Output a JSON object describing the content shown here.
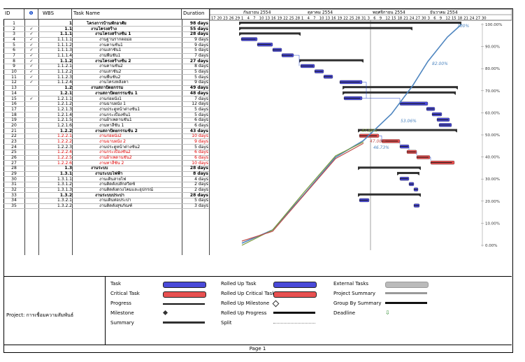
{
  "table": {
    "headers": {
      "id": "ID",
      "info": "❶",
      "wbs": "WBS",
      "task": "Task Name",
      "duration": "Duration"
    },
    "rows": [
      {
        "id": "1",
        "check": "",
        "wbs": "1",
        "name": "โครงการบ้านพักอาศัย",
        "duration": "98 days",
        "bold": true,
        "red": false
      },
      {
        "id": "2",
        "check": "✓",
        "wbs": "1.1",
        "name": "งานโครงสร้าง",
        "duration": "55 days",
        "bold": true,
        "red": false
      },
      {
        "id": "3",
        "check": "✓",
        "wbs": "1.1.1",
        "name": "งานโครงสร้างชั้น 1",
        "duration": "28 days",
        "bold": true,
        "red": false
      },
      {
        "id": "4",
        "check": "✓",
        "wbs": "1.1.1.1",
        "name": "งานฐานรากตอม่อ",
        "duration": "9 days",
        "bold": false,
        "red": false
      },
      {
        "id": "5",
        "check": "✓",
        "wbs": "1.1.1.2",
        "name": "งานคานชั้น1",
        "duration": "9 days",
        "bold": false,
        "red": false
      },
      {
        "id": "6",
        "check": "✓",
        "wbs": "1.1.1.3",
        "name": "งานเสาชั้น1",
        "duration": "5 days",
        "bold": false,
        "red": false
      },
      {
        "id": "7",
        "check": "✓",
        "wbs": "1.1.1.4",
        "name": "งานพื้นชั้น1",
        "duration": "7 days",
        "bold": false,
        "red": false
      },
      {
        "id": "8",
        "check": "✓",
        "wbs": "1.1.2",
        "name": "งานโครงสร้างชั้น 2",
        "duration": "27 days",
        "bold": true,
        "red": false
      },
      {
        "id": "9",
        "check": "✓",
        "wbs": "1.1.2.1",
        "name": "งานคานชั้น2",
        "duration": "8 days",
        "bold": false,
        "red": false
      },
      {
        "id": "10",
        "check": "✓",
        "wbs": "1.1.2.2",
        "name": "งานเสาชั้น2",
        "duration": "5 days",
        "bold": false,
        "red": false
      },
      {
        "id": "11",
        "check": "✓",
        "wbs": "1.1.2.3",
        "name": "งานพื้นชั้น2",
        "duration": "5 days",
        "bold": false,
        "red": false
      },
      {
        "id": "12",
        "check": "✓",
        "wbs": "1.1.2.4",
        "name": "งานโครงหลังคา",
        "duration": "9 days",
        "bold": false,
        "red": false
      },
      {
        "id": "13",
        "check": "",
        "wbs": "1.2",
        "name": "งานสถาปัตยกรรม",
        "duration": "49 days",
        "bold": true,
        "red": false
      },
      {
        "id": "14",
        "check": "",
        "wbs": "1.2.1",
        "name": "งานสถาปัตยกรรมชั้น 1",
        "duration": "48 days",
        "bold": true,
        "red": false
      },
      {
        "id": "15",
        "check": "✓",
        "wbs": "1.2.1.1",
        "name": "งานก่อผนัง1",
        "duration": "7 days",
        "bold": false,
        "red": false
      },
      {
        "id": "16",
        "check": "",
        "wbs": "1.2.1.2",
        "name": "งานฉาบผนัง 1",
        "duration": "12 days",
        "bold": false,
        "red": false
      },
      {
        "id": "17",
        "check": "",
        "wbs": "1.2.1.3",
        "name": "งานประตูหน้าต่างชั้น1",
        "duration": "5 days",
        "bold": false,
        "red": false
      },
      {
        "id": "18",
        "check": "",
        "wbs": "1.2.1.4",
        "name": "งานกระเบื้องชั้น1",
        "duration": "5 days",
        "bold": false,
        "red": false
      },
      {
        "id": "19",
        "check": "",
        "wbs": "1.2.1.5",
        "name": "งานฝ้าเพดานชั้น1",
        "duration": "6 days",
        "bold": false,
        "red": false
      },
      {
        "id": "20",
        "check": "",
        "wbs": "1.2.1.6",
        "name": "งานทาสีชั้น 1",
        "duration": "6 days",
        "bold": false,
        "red": false
      },
      {
        "id": "21",
        "check": "",
        "wbs": "1.2.2",
        "name": "งานสถาปัตยกรรมชั้น 2",
        "duration": "43 days",
        "bold": true,
        "red": false
      },
      {
        "id": "22",
        "check": "",
        "wbs": "1.2.2.1",
        "name": "งานก่อผนัง2",
        "duration": "10 days",
        "bold": false,
        "red": true
      },
      {
        "id": "23",
        "check": "",
        "wbs": "1.2.2.2",
        "name": "งานฉาบผนัง 2",
        "duration": "9 days",
        "bold": false,
        "red": true
      },
      {
        "id": "24",
        "check": "",
        "wbs": "1.2.2.3",
        "name": "งานประตูหน้าต่างชั้น2",
        "duration": "5 days",
        "bold": false,
        "red": false
      },
      {
        "id": "25",
        "check": "",
        "wbs": "1.2.2.4",
        "name": "งานกระเบื้องชั้น2",
        "duration": "6 days",
        "bold": false,
        "red": true
      },
      {
        "id": "26",
        "check": "",
        "wbs": "1.2.2.5",
        "name": "งานฝ้าเพดานชั้น2",
        "duration": "6 days",
        "bold": false,
        "red": true
      },
      {
        "id": "27",
        "check": "",
        "wbs": "1.2.2.6",
        "name": "งานทาสีชั้น 2",
        "duration": "10 days",
        "bold": false,
        "red": true
      },
      {
        "id": "28",
        "check": "",
        "wbs": "1.3",
        "name": "งานระบบ",
        "duration": "28 days",
        "bold": true,
        "red": false
      },
      {
        "id": "29",
        "check": "",
        "wbs": "1.3.1",
        "name": "งานระบบไฟฟ้า",
        "duration": "8 days",
        "bold": true,
        "red": false
      },
      {
        "id": "30",
        "check": "",
        "wbs": "1.3.1.1",
        "name": "งานเดินสายไฟ",
        "duration": "4 days",
        "bold": false,
        "red": false
      },
      {
        "id": "31",
        "check": "",
        "wbs": "1.3.1.2",
        "name": "งานติดตั้งปลั๊กสวิตซ์",
        "duration": "2 days",
        "bold": false,
        "red": false
      },
      {
        "id": "32",
        "check": "",
        "wbs": "1.3.1.3",
        "name": "งานติดตั้งดวงโคมและอุปกรณ์",
        "duration": "2 days",
        "bold": false,
        "red": false
      },
      {
        "id": "33",
        "check": "",
        "wbs": "1.3.2",
        "name": "งานระบบประปา",
        "duration": "28 days",
        "bold": true,
        "red": false
      },
      {
        "id": "34",
        "check": "",
        "wbs": "1.3.2.1",
        "name": "งานเดินท่อประปา",
        "duration": "5 days",
        "bold": false,
        "red": false
      },
      {
        "id": "35",
        "check": "",
        "wbs": "1.3.2.2",
        "name": "งานติดตั้งสุขภัณฑ์",
        "duration": "3 days",
        "bold": false,
        "red": false
      }
    ]
  },
  "timescale": {
    "months": [
      "กันยายน 2554",
      "ตุลาคม 2554",
      "พฤศจิกายน 2554",
      "ธันวาคม 2554"
    ],
    "days": [
      "17",
      "20",
      "23",
      "26",
      "29",
      "1",
      "4",
      "7",
      "10",
      "13",
      "16",
      "19",
      "22",
      "25",
      "28",
      "1",
      "4",
      "7",
      "10",
      "13",
      "16",
      "19",
      "22",
      "25",
      "28",
      "31",
      "3",
      "6",
      "9",
      "12",
      "15",
      "18",
      "21",
      "24",
      "27",
      "30",
      "3",
      "6",
      "9",
      "12",
      "15",
      "18",
      "21",
      "24",
      "27",
      "30"
    ]
  },
  "curve": {
    "y_ticks": [
      "100.00%",
      "90.00%",
      "80.00%",
      "70.00%",
      "60.00%",
      "50.00%",
      "40.00%",
      "30.00%",
      "20.00%",
      "10.00%",
      "0.00%"
    ],
    "labels": {
      "top": "100%",
      "planned": "82.00%",
      "actual": "47.89%",
      "earned": "47.08%",
      "other": "46.73%",
      "mid": "53.06%"
    }
  },
  "legend": {
    "project_label": "Project: การเชื่อมความสัมพันธ์",
    "col1": [
      "Task",
      "Critical Task",
      "Progress",
      "Milestone",
      "Summary"
    ],
    "col2": [
      "Rolled Up Task",
      "Rolled Up Critical Task",
      "Rolled Up Milestone",
      "Rolled Up Progress",
      "Split"
    ],
    "col3": [
      "External Tasks",
      "Project Summary",
      "Group By Summary",
      "Deadline"
    ]
  },
  "footer": {
    "page": "Page 1"
  },
  "colors": {
    "task": "#4a4ad8",
    "critical": "#e85050",
    "summary": "#303030",
    "planned": "#4f86c0",
    "actual": "#7a9a3a",
    "earned": "#c0504d"
  }
}
